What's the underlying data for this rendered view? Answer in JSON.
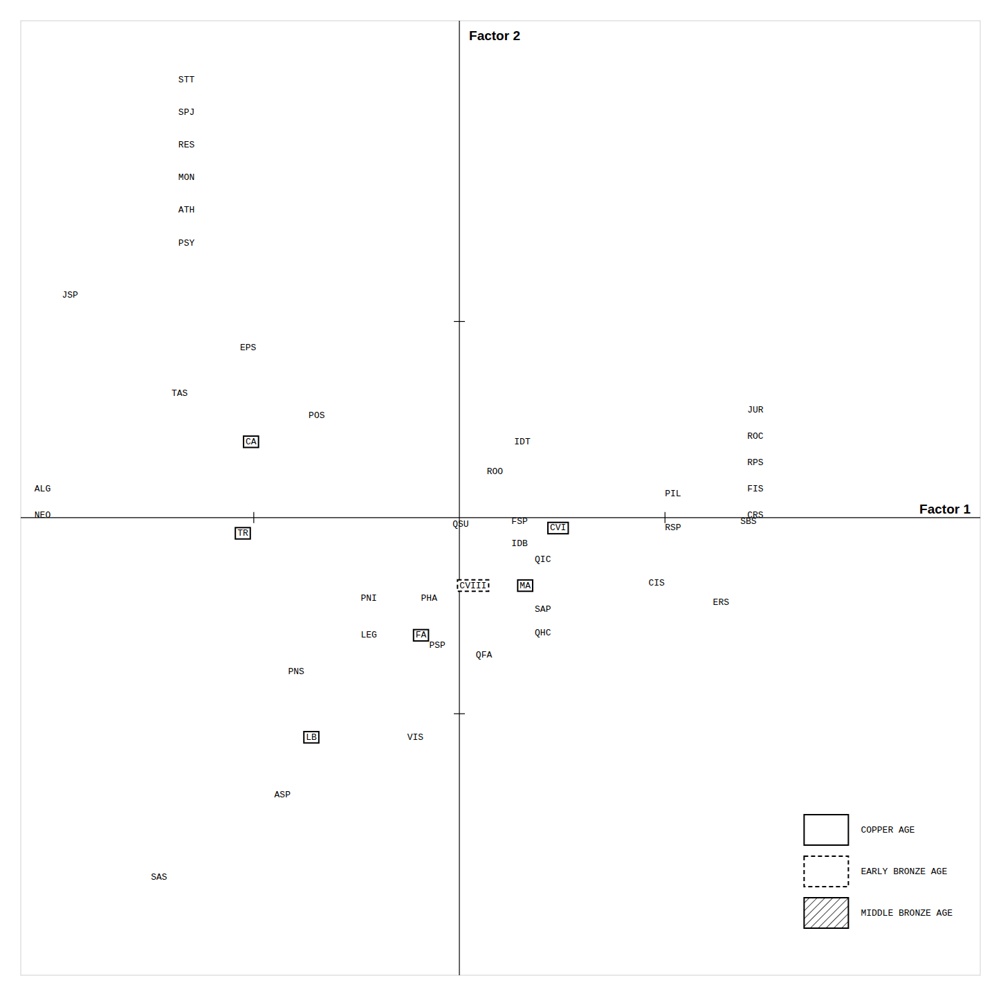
{
  "chart_data": {
    "type": "scatter",
    "xlabel": "Factor 1",
    "ylabel": "Factor 2",
    "xlim": [
      -3.2,
      3.8
    ],
    "ylim": [
      -3.5,
      3.8
    ],
    "xticks": [
      -1.5,
      1.5
    ],
    "yticks": [
      -1.5,
      1.5
    ],
    "tick_labels": false,
    "grid": false,
    "legend": "lower-right",
    "color": "#000000",
    "series": [
      {
        "marker": "none",
        "line_style": "none",
        "labels": [
          "STT",
          "SPJ",
          "RES",
          "MON",
          "ATH",
          "PSY",
          "JSP",
          "EPS",
          "TAS",
          "POS",
          "IDT",
          "ROO",
          "ALG",
          "NEO",
          "QSU",
          "FSP",
          "IDB",
          "PIL",
          "RSP",
          "SBS",
          "QIC",
          "CIS",
          "PNI",
          "PHA",
          "ERS",
          "SAP",
          "QHC",
          "LEG",
          "PSP",
          "QFA",
          "PNS",
          "VIS",
          "ASP",
          "SAS",
          "JUR",
          "ROC",
          "RPS",
          "FIS",
          "CRS"
        ],
        "x": [
          -2.05,
          -2.05,
          -2.05,
          -2.05,
          -2.05,
          -2.05,
          -2.9,
          -1.6,
          -2.1,
          -1.1,
          0.4,
          0.2,
          -3.1,
          -3.1,
          -0.05,
          0.38,
          0.38,
          1.5,
          1.5,
          2.05,
          0.55,
          1.38,
          -0.72,
          -0.28,
          1.85,
          0.55,
          0.55,
          -0.72,
          -0.22,
          0.12,
          -1.25,
          -0.38,
          -1.35,
          -2.25,
          2.1,
          2.1,
          2.1,
          2.1,
          2.1
        ],
        "values": [
          3.35,
          3.1,
          2.85,
          2.6,
          2.35,
          2.1,
          1.7,
          1.3,
          0.95,
          0.78,
          0.58,
          0.35,
          0.22,
          0.02,
          -0.05,
          -0.03,
          -0.2,
          0.18,
          -0.08,
          -0.03,
          -0.32,
          -0.5,
          -0.62,
          -0.62,
          -0.65,
          -0.7,
          -0.88,
          -0.9,
          -0.98,
          -1.05,
          -1.18,
          -1.68,
          -2.12,
          -2.75,
          0.82,
          0.62,
          0.42,
          0.22,
          0.02
        ]
      },
      {
        "name": "COPPER AGE",
        "marker": "box",
        "line_style": "solid",
        "labels": [
          "CA",
          "TR",
          "FA",
          "LB",
          "CVI",
          "MA"
        ],
        "x": [
          -1.52,
          -1.58,
          -0.28,
          -1.08,
          0.72,
          0.48
        ],
        "values": [
          0.58,
          -0.12,
          -0.9,
          -1.68,
          -0.08,
          -0.52
        ]
      },
      {
        "name": "EARLY  BRONZE AGE",
        "marker": "box",
        "line_style": "dashed",
        "labels": [
          "CVIII"
        ],
        "x": [
          0.1
        ],
        "values": [
          -0.52
        ]
      },
      {
        "name": "MIDDLE BRONZE AGE",
        "marker": "hatched",
        "line_style": "solid",
        "labels": [],
        "x": [],
        "values": []
      }
    ]
  }
}
